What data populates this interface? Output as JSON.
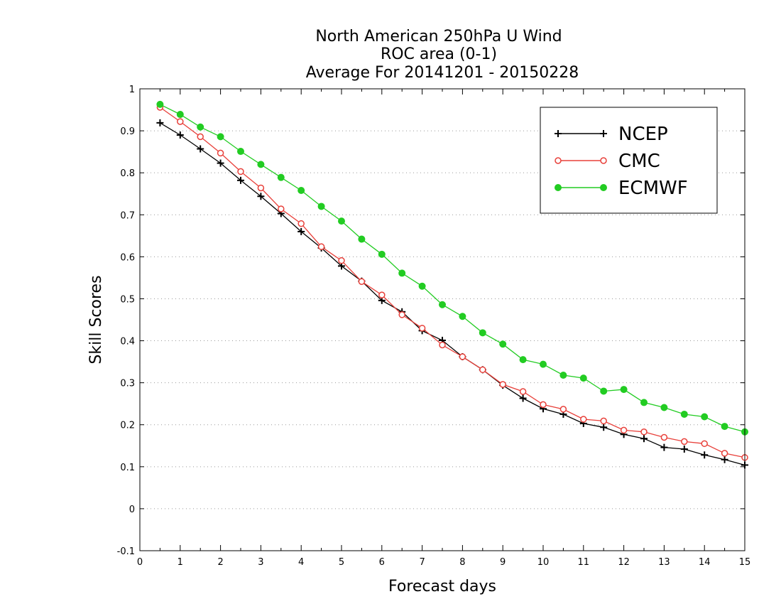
{
  "chart_data": {
    "type": "line",
    "title": [
      "North American 250hPa U Wind",
      "ROC area (0-1)",
      "Average For 20141201 - 20150228"
    ],
    "xlabel": "Forecast days",
    "ylabel": "Skill Scores",
    "xlim": [
      0,
      15
    ],
    "ylim": [
      -0.1,
      1
    ],
    "xticks": [
      0,
      1,
      2,
      3,
      4,
      5,
      6,
      7,
      8,
      9,
      10,
      11,
      12,
      13,
      14,
      15
    ],
    "yticks": [
      -0.1,
      0,
      0.1,
      0.2,
      0.3,
      0.4,
      0.5,
      0.6,
      0.7,
      0.8,
      0.9,
      1
    ],
    "ytick_labels": [
      "-0.1",
      "0",
      "0.1",
      "0.2",
      "0.3",
      "0.4",
      "0.5",
      "0.6",
      "0.7",
      "0.8",
      "0.9",
      "1"
    ],
    "grid": "horizontal dotted",
    "legend_position": "top-right",
    "x": [
      0.5,
      1,
      1.5,
      2,
      2.5,
      3,
      3.5,
      4,
      4.5,
      5,
      5.5,
      6,
      6.5,
      7,
      7.5,
      8,
      8.5,
      9,
      9.5,
      10,
      10.5,
      11,
      11.5,
      12,
      12.5,
      13,
      13.5,
      14,
      14.5,
      15
    ],
    "series": [
      {
        "name": "NCEP",
        "color": "#000000",
        "marker": "plus",
        "values": [
          0.919,
          0.89,
          0.857,
          0.823,
          0.782,
          0.744,
          0.703,
          0.66,
          0.621,
          0.578,
          0.542,
          0.496,
          0.469,
          0.424,
          0.401,
          0.362,
          0.331,
          0.294,
          0.263,
          0.238,
          0.225,
          0.203,
          0.194,
          0.177,
          0.167,
          0.146,
          0.142,
          0.128,
          0.117,
          0.104
        ]
      },
      {
        "name": "CMC",
        "color": "#e8403a",
        "marker": "open-circle",
        "values": [
          0.956,
          0.922,
          0.886,
          0.847,
          0.803,
          0.764,
          0.714,
          0.679,
          0.624,
          0.591,
          0.541,
          0.509,
          0.462,
          0.43,
          0.39,
          0.362,
          0.331,
          0.296,
          0.279,
          0.248,
          0.237,
          0.213,
          0.209,
          0.187,
          0.183,
          0.17,
          0.16,
          0.155,
          0.132,
          0.122
        ]
      },
      {
        "name": "ECMWF",
        "color": "#22cc22",
        "marker": "filled-circle",
        "values": [
          0.963,
          0.939,
          0.909,
          0.886,
          0.851,
          0.82,
          0.789,
          0.758,
          0.72,
          0.685,
          0.642,
          0.606,
          0.561,
          0.53,
          0.486,
          0.458,
          0.419,
          0.392,
          0.355,
          0.344,
          0.318,
          0.311,
          0.28,
          0.284,
          0.253,
          0.241,
          0.225,
          0.219,
          0.196,
          0.183
        ]
      }
    ]
  }
}
